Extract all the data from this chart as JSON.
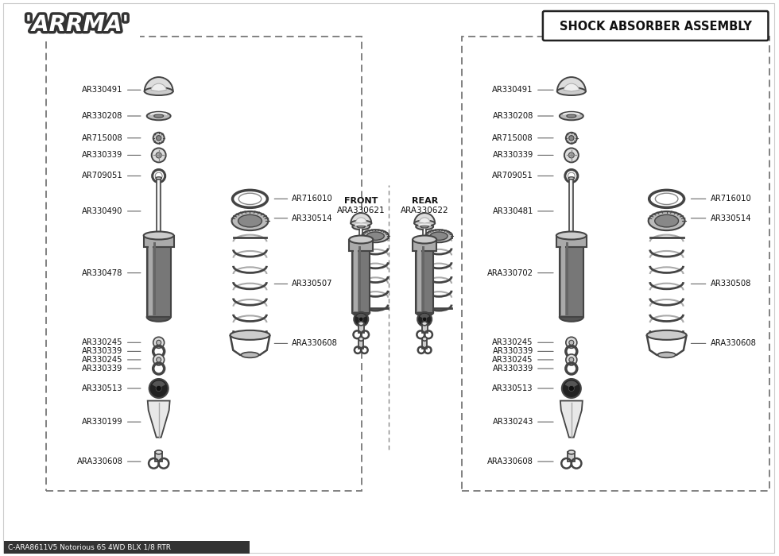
{
  "title": "SHOCK ABSORBER ASSEMBLY",
  "footer_text": "C-ARA8611V5 Notorious 6S 4WD BLX 1/8 RTR",
  "bg_color": "#ffffff",
  "left_parts_labels": [
    [
      "AR330491",
      0.895
    ],
    [
      "AR330208",
      0.836
    ],
    [
      "AR715008",
      0.786
    ],
    [
      "AR330339",
      0.747
    ],
    [
      "AR709051",
      0.7
    ],
    [
      "AR330490",
      0.62
    ],
    [
      "AR330478",
      0.48
    ],
    [
      "AR330245",
      0.322
    ],
    [
      "AR330339",
      0.302
    ],
    [
      "AR330245",
      0.283
    ],
    [
      "AR330339",
      0.263
    ],
    [
      "AR330513",
      0.218
    ],
    [
      "AR330199",
      0.142
    ],
    [
      "ARA330608",
      0.052
    ]
  ],
  "left_right_labels": [
    [
      "AR716010",
      0.648
    ],
    [
      "AR330514",
      0.604
    ],
    [
      "AR330507",
      0.455
    ],
    [
      "ARA330608",
      0.32
    ]
  ],
  "right_parts_labels": [
    [
      "AR330491",
      0.895
    ],
    [
      "AR330208",
      0.836
    ],
    [
      "AR715008",
      0.786
    ],
    [
      "AR330339",
      0.747
    ],
    [
      "AR709051",
      0.7
    ],
    [
      "AR330481",
      0.62
    ],
    [
      "ARA330702",
      0.48
    ],
    [
      "AR330245",
      0.322
    ],
    [
      "AR330339",
      0.302
    ],
    [
      "AR330245",
      0.283
    ],
    [
      "AR330339",
      0.263
    ],
    [
      "AR330513",
      0.218
    ],
    [
      "AR330243",
      0.142
    ],
    [
      "ARA330608",
      0.052
    ]
  ],
  "right_right_labels": [
    [
      "AR716010",
      0.648
    ],
    [
      "AR330514",
      0.604
    ],
    [
      "AR330508",
      0.455
    ],
    [
      "ARA330608",
      0.32
    ]
  ]
}
